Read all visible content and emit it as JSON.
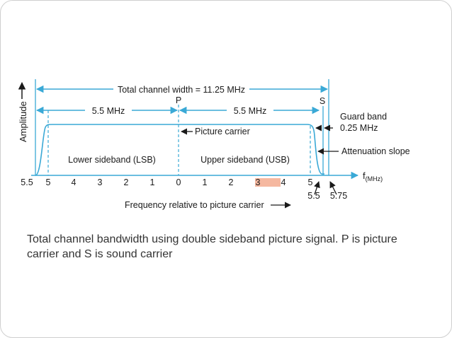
{
  "colors": {
    "line": "#3aa9d6",
    "text": "#1a1a1a",
    "caption": "#333333",
    "highlight": "#f5b8a0"
  },
  "diagram": {
    "amplitude_label": "Amplitude",
    "total_width_label": "Total channel width = 11.25 MHz",
    "left_span_label": "5.5 MHz",
    "right_span_label": "5.5 MHz",
    "p_label": "P",
    "s_label": "S",
    "guard_band_label": "Guard band",
    "guard_band_value": "0.25 MHz",
    "picture_carrier_label": "Picture carrier",
    "attenuation_label": "Attenuation slope",
    "lsb_label": "Lower sideband (LSB)",
    "usb_label": "Upper sideband (USB)",
    "f_label": "f",
    "f_unit": "(MHz)",
    "axis_ticks": [
      "5.5",
      "5",
      "4",
      "3",
      "2",
      "1",
      "0",
      "1",
      "2",
      "3",
      "4",
      "5"
    ],
    "lower_ticks": [
      "5.5",
      "5.75"
    ],
    "frequency_axis_label": "Frequency relative to picture carrier"
  },
  "caption": "Total channel bandwidth using double sideband  picture signal. P is picture carrier and S is sound carrier"
}
